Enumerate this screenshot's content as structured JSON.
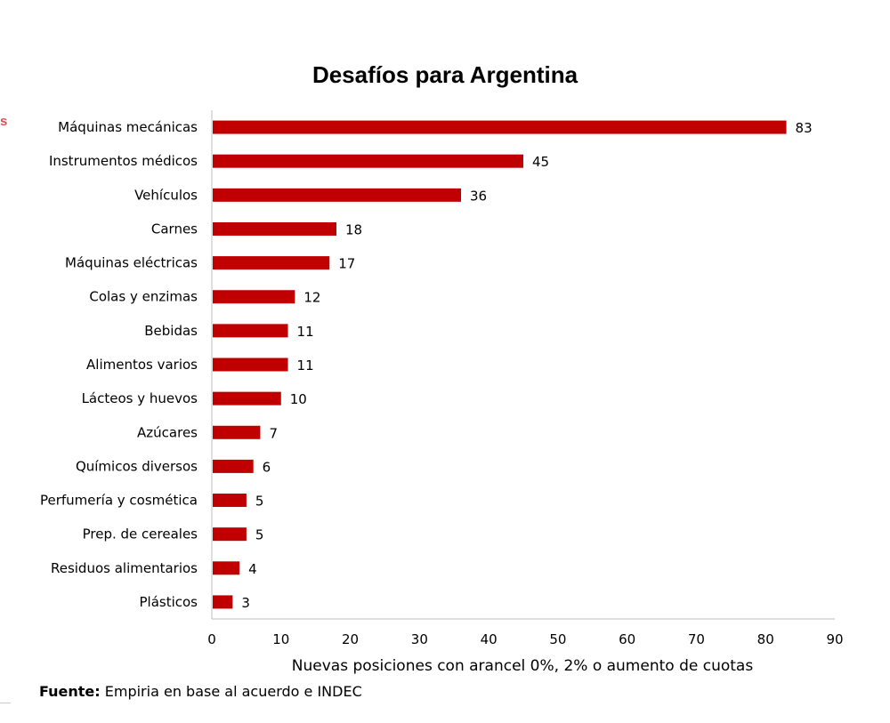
{
  "edge_fragment": "s",
  "source": {
    "label": "Fuente:",
    "text": " Empiria en base al acuerdo e INDEC"
  },
  "colors": {
    "bar": "#c00000",
    "axis": "#bfbfbf"
  },
  "chart_data": {
    "type": "bar",
    "orientation": "horizontal",
    "title": "Desafíos para Argentina",
    "xlabel": "Nuevas posiciones con arancel 0%, 2% o aumento de cuotas",
    "ylabel": "",
    "xlim": [
      0,
      90
    ],
    "xticks": [
      0,
      10,
      20,
      30,
      40,
      50,
      60,
      70,
      80,
      90
    ],
    "grid": false,
    "categories": [
      "Máquinas mecánicas",
      "Instrumentos médicos",
      "Vehículos",
      "Carnes",
      "Máquinas eléctricas",
      "Colas y enzimas",
      "Bebidas",
      "Alimentos varios",
      "Lácteos y huevos",
      "Azúcares",
      "Químicos diversos",
      "Perfumería y cosmética",
      "Prep. de cereales",
      "Residuos alimentarios",
      "Plásticos"
    ],
    "values": [
      83,
      45,
      36,
      18,
      17,
      12,
      11,
      11,
      10,
      7,
      6,
      5,
      5,
      4,
      3
    ]
  }
}
